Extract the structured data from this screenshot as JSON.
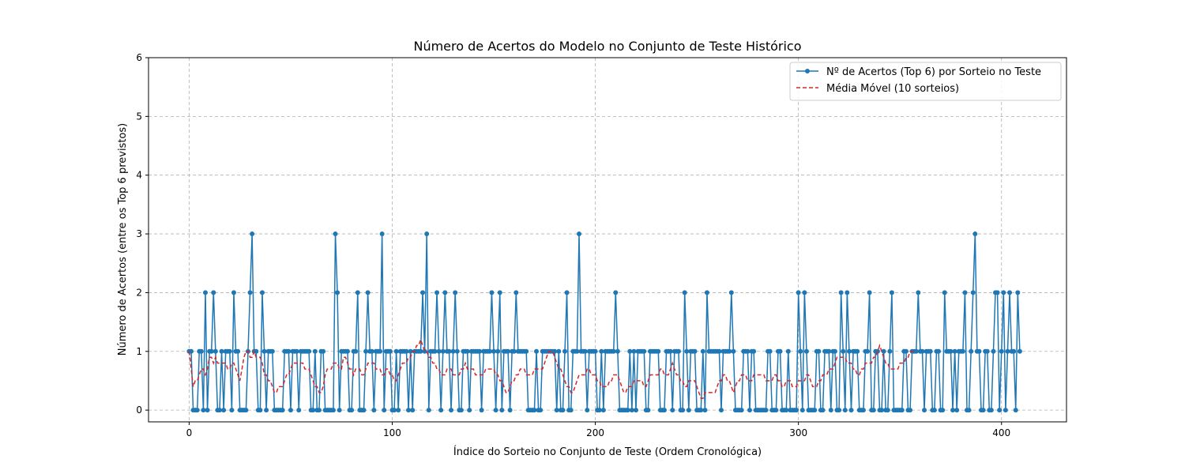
{
  "chart_data": {
    "type": "line",
    "title": "Número de Acertos do Modelo no Conjunto de Teste Histórico",
    "xlabel": "Índice do Sorteio no Conjunto de Teste (Ordem Cronológica)",
    "ylabel": "Número de Acertos (entre os Top 6 previstos)",
    "xlim": [
      -20,
      432
    ],
    "ylim": [
      -0.2,
      6
    ],
    "xticks": [
      0,
      100,
      200,
      300,
      400
    ],
    "yticks": [
      0,
      1,
      2,
      3,
      4,
      5,
      6
    ],
    "grid": true,
    "legend_position": "top-right",
    "series": [
      {
        "name": "Nº de Acertos (Top 6) por Sorteio no Teste",
        "style": "line-markers",
        "color": "#1f77b4",
        "y": [
          1,
          1,
          0,
          0,
          0,
          1,
          1,
          0,
          2,
          0,
          1,
          1,
          2,
          1,
          0,
          0,
          1,
          0,
          1,
          1,
          1,
          0,
          2,
          1,
          1,
          0,
          0,
          0,
          0,
          1,
          2,
          3,
          1,
          1,
          0,
          0,
          2,
          1,
          0,
          1,
          1,
          1,
          0,
          0,
          0,
          0,
          0,
          1,
          1,
          1,
          0,
          1,
          1,
          1,
          0,
          1,
          1,
          1,
          1,
          1,
          0,
          0,
          1,
          0,
          0,
          1,
          1,
          0,
          0,
          0,
          0,
          0,
          3,
          2,
          0,
          1,
          1,
          1,
          1,
          0,
          0,
          1,
          1,
          2,
          0,
          0,
          0,
          1,
          2,
          1,
          1,
          0,
          1,
          1,
          1,
          3,
          0,
          1,
          1,
          1,
          0,
          0,
          1,
          0,
          1,
          1,
          1,
          1,
          0,
          1,
          0,
          1,
          1,
          1,
          1,
          2,
          1,
          3,
          0,
          1,
          1,
          1,
          2,
          1,
          0,
          1,
          2,
          1,
          1,
          0,
          1,
          2,
          1,
          0,
          0,
          1,
          1,
          1,
          0,
          1,
          1,
          1,
          1,
          1,
          0,
          1,
          1,
          1,
          1,
          2,
          1,
          0,
          1,
          2,
          0,
          1,
          1,
          1,
          0,
          1,
          1,
          2,
          1,
          1,
          1,
          1,
          1,
          0,
          0,
          0,
          0,
          1,
          0,
          0,
          1,
          1,
          1,
          1,
          1,
          1,
          1,
          0,
          1,
          0,
          0,
          1,
          2,
          0,
          0,
          1,
          1,
          1,
          3,
          1,
          1,
          1,
          0,
          1,
          1,
          1,
          1,
          0,
          0,
          1,
          0,
          1,
          1,
          1,
          1,
          1,
          2,
          1,
          0,
          0,
          0,
          0,
          0,
          1,
          0,
          1,
          0,
          1,
          1,
          1,
          1,
          0,
          0,
          1,
          1,
          1,
          1,
          1,
          0,
          0,
          0,
          1,
          1,
          1,
          0,
          1,
          1,
          1,
          0,
          0,
          2,
          1,
          0,
          1,
          1,
          1,
          0,
          0,
          0,
          1,
          0,
          2,
          1,
          1,
          1,
          1,
          1,
          1,
          0,
          1,
          1,
          1,
          1,
          2,
          1,
          0,
          0,
          0,
          0,
          1,
          1,
          1,
          0,
          1,
          1,
          0,
          0,
          0,
          0,
          0,
          0,
          1,
          1,
          0,
          0,
          0,
          1,
          1,
          0,
          0,
          0,
          1,
          0,
          0,
          0,
          0,
          2,
          1,
          0,
          2,
          1,
          0,
          0,
          0,
          0,
          1,
          1,
          0,
          0,
          1,
          1,
          1,
          0,
          1,
          1,
          0,
          0,
          2,
          1,
          0,
          2,
          1,
          0,
          1,
          1,
          1,
          0,
          0,
          0,
          1,
          1,
          2,
          0,
          0,
          1,
          1,
          0,
          0,
          1,
          0,
          0,
          1,
          2,
          0,
          0,
          0,
          0,
          0,
          1,
          1,
          0,
          0,
          1,
          1,
          1,
          2,
          1,
          1,
          0,
          1,
          1,
          1,
          0,
          0,
          1,
          1,
          0,
          0,
          2,
          1,
          1,
          1,
          0,
          1,
          0,
          1,
          1,
          1,
          2,
          0,
          0,
          1,
          2,
          3,
          1,
          1,
          0,
          0,
          1,
          1,
          0,
          0,
          1,
          2,
          2,
          0,
          1,
          2,
          0,
          1,
          2,
          1,
          1,
          0,
          2,
          1
        ]
      },
      {
        "name": "Média Móvel (10 sorteios)",
        "style": "dashed",
        "color": "#d62728",
        "x_start": 0,
        "y": [
          1.0,
          0.7,
          0.4,
          0.5,
          0.5,
          0.6,
          0.7,
          0.7,
          0.6,
          0.7,
          0.9,
          0.9,
          0.8,
          0.9,
          0.8,
          0.8,
          0.8,
          0.8,
          0.8,
          0.7,
          0.7,
          0.8,
          0.8,
          0.7,
          0.6,
          0.5,
          0.7,
          0.9,
          1.0,
          1.0,
          0.9,
          0.9,
          1.0,
          0.9,
          0.9,
          0.9,
          0.8,
          0.6,
          0.6,
          0.5,
          0.5,
          0.4,
          0.3,
          0.3,
          0.4,
          0.4,
          0.4,
          0.5,
          0.6,
          0.6,
          0.7,
          0.8,
          0.8,
          0.8,
          0.8,
          0.8,
          0.8,
          0.7,
          0.7,
          0.7,
          0.6,
          0.5,
          0.4,
          0.4,
          0.3,
          0.3,
          0.4,
          0.6,
          0.7,
          0.7,
          0.7,
          0.8,
          0.8,
          0.8,
          0.7,
          0.7,
          0.9,
          0.9,
          0.8,
          0.7,
          0.7,
          0.6,
          0.7,
          0.7,
          0.7,
          0.6,
          0.6,
          0.7,
          0.8,
          0.8,
          0.8,
          0.8,
          0.7,
          0.7,
          0.7,
          0.6,
          0.6,
          0.7,
          0.7,
          0.6,
          0.6,
          0.5,
          0.5,
          0.6,
          0.7,
          0.8,
          0.8,
          0.8,
          0.9,
          0.9,
          1.0,
          1.0,
          1.1,
          1.1,
          1.2,
          1.1,
          1.0,
          1.0,
          0.9,
          0.9,
          0.8,
          0.8,
          0.7,
          0.7,
          0.6,
          0.6,
          0.6,
          0.7,
          0.7,
          0.7,
          0.6,
          0.6,
          0.6,
          0.6,
          0.7,
          0.7,
          0.8,
          0.7,
          0.7,
          0.7,
          0.7,
          0.6,
          0.6,
          0.6,
          0.6,
          0.6,
          0.7,
          0.7,
          0.7,
          0.7,
          0.7,
          0.6,
          0.6,
          0.5,
          0.5,
          0.4,
          0.3,
          0.3,
          0.4,
          0.5,
          0.5,
          0.6,
          0.6,
          0.7,
          0.7,
          0.7,
          0.6,
          0.6,
          0.6,
          0.6,
          0.7,
          0.7,
          0.7,
          0.7,
          0.7,
          0.8,
          0.9,
          1.0,
          1.0,
          1.0,
          0.9,
          0.8,
          0.7,
          0.7,
          0.6,
          0.5,
          0.4,
          0.4,
          0.3,
          0.3,
          0.4,
          0.5,
          0.6,
          0.6,
          0.6,
          0.6,
          0.7,
          0.7,
          0.6,
          0.6,
          0.6,
          0.5,
          0.5,
          0.4,
          0.4,
          0.4,
          0.4,
          0.5,
          0.5,
          0.6,
          0.6,
          0.6,
          0.5,
          0.4,
          0.3,
          0.3,
          0.4,
          0.4,
          0.4,
          0.5,
          0.5,
          0.5,
          0.5,
          0.5,
          0.4,
          0.4,
          0.5,
          0.6,
          0.6,
          0.6,
          0.6,
          0.6,
          0.7,
          0.7,
          0.6,
          0.6,
          0.6,
          0.7,
          0.8,
          0.7,
          0.6,
          0.6,
          0.5,
          0.5,
          0.4,
          0.4,
          0.5,
          0.5,
          0.5,
          0.5,
          0.4,
          0.3,
          0.2,
          0.2,
          0.3,
          0.3,
          0.3,
          0.3,
          0.3,
          0.3,
          0.4,
          0.5,
          0.5,
          0.6,
          0.6,
          0.5,
          0.5,
          0.4,
          0.3,
          0.4,
          0.5,
          0.5,
          0.6,
          0.6,
          0.6,
          0.5,
          0.5,
          0.5,
          0.6,
          0.6,
          0.6,
          0.6,
          0.6,
          0.6,
          0.5,
          0.5,
          0.5,
          0.5,
          0.6,
          0.6,
          0.5,
          0.5,
          0.4,
          0.4,
          0.5,
          0.5,
          0.5,
          0.4,
          0.4,
          0.4,
          0.5,
          0.5,
          0.5,
          0.5,
          0.6,
          0.6,
          0.5,
          0.4,
          0.4,
          0.4,
          0.5,
          0.5,
          0.6,
          0.6,
          0.6,
          0.7,
          0.7,
          0.7,
          0.8,
          0.9,
          0.9,
          0.9,
          0.9,
          0.9,
          0.8,
          0.8,
          0.8,
          0.7,
          0.7,
          0.6,
          0.6,
          0.7,
          0.7,
          0.8,
          0.8,
          0.8,
          0.8,
          0.9,
          0.9,
          1.0,
          1.1,
          1.0,
          0.9,
          0.8,
          0.8,
          0.7,
          0.7,
          0.7,
          0.7,
          0.7,
          0.8,
          0.8,
          0.8,
          0.9,
          0.9,
          1.0,
          1.0,
          1.0
        ]
      }
    ]
  }
}
